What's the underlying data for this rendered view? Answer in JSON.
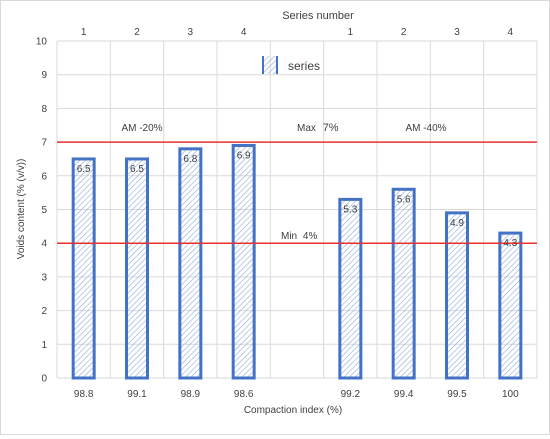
{
  "chart_data": {
    "type": "bar",
    "top_axis_title": "Series number",
    "xlabel": "Compaction index (%)",
    "ylabel": "Voids content (% (v/v))",
    "ylim": [
      0,
      10
    ],
    "yticks": [
      0,
      1,
      2,
      3,
      4,
      5,
      6,
      7,
      8,
      9,
      10
    ],
    "grid": true,
    "legend": {
      "label": "series",
      "placement": "top-center"
    },
    "categories": [
      "98.8",
      "99.1",
      "98.9",
      "98.6",
      "",
      "99.2",
      "99.4",
      "99.5",
      "100"
    ],
    "top_labels": [
      "1",
      "2",
      "3",
      "4",
      "",
      "1",
      "2",
      "3",
      "4"
    ],
    "values": [
      6.5,
      6.5,
      6.8,
      6.9,
      null,
      5.3,
      5.6,
      4.9,
      4.3
    ],
    "data_labels": [
      "6.5",
      "6.5",
      "6.8",
      "6.9",
      "",
      "5.3",
      "5.6",
      "4.9",
      "4.3"
    ],
    "reference_lines": [
      {
        "value": 7,
        "label_prefix": "Max",
        "label_value": "7%"
      },
      {
        "value": 4,
        "label_prefix": "Min",
        "label_value": "4%"
      }
    ],
    "group_labels": [
      "AM -20%",
      "AM -40%"
    ],
    "colors": {
      "bar_edge": "#4472c4",
      "hatch": "#8faadc",
      "reference_line": "#e8302f",
      "grid": "#d9d9d9"
    }
  }
}
